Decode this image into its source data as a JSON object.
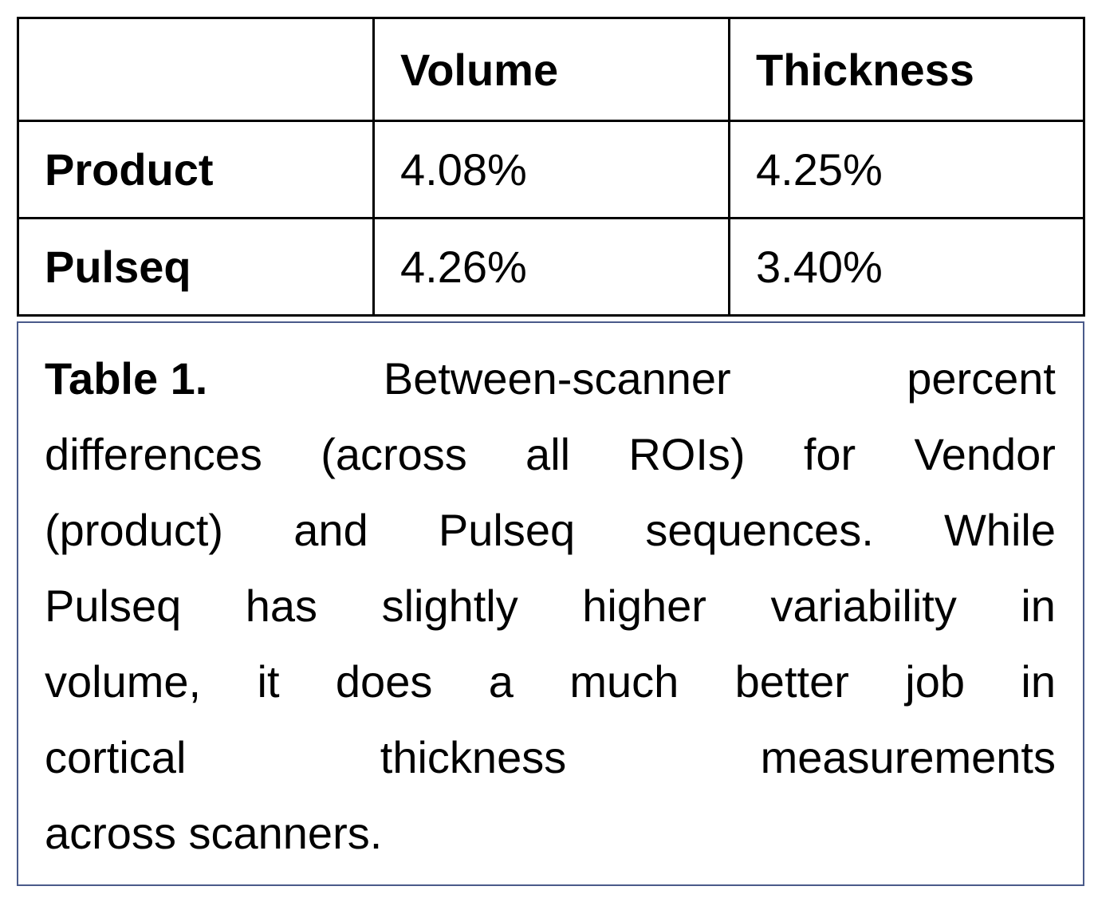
{
  "table": {
    "header": [
      "",
      "Volume",
      "Thickness"
    ],
    "rows": [
      [
        "Product",
        "4.08%",
        "4.25%"
      ],
      [
        "Pulseq",
        "4.26%",
        "3.40%"
      ]
    ]
  },
  "caption": {
    "label": "Table 1.",
    "lines": [
      "Between-scanner percent",
      "differences (across all ROIs) for Vendor",
      "(product) and Pulseq sequences. While",
      "Pulseq has slightly higher variability in",
      "volume, it does a much better job in",
      "cortical thickness measurements",
      "across scanners."
    ]
  }
}
